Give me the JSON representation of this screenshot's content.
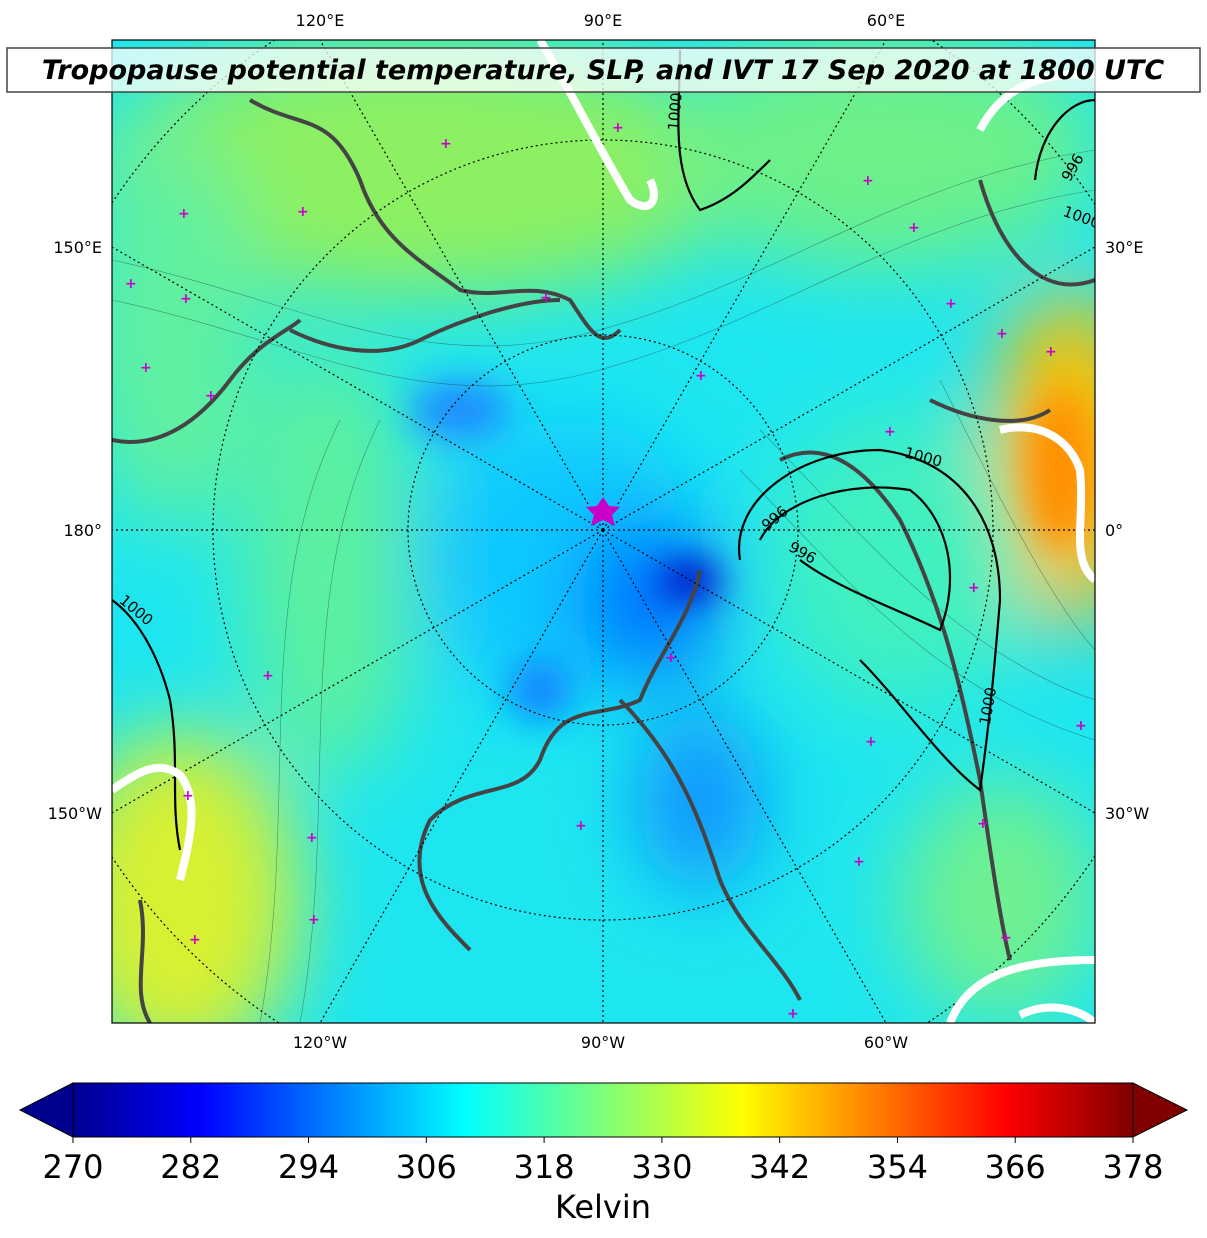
{
  "title": "Tropopause potential temperature, SLP, and IVT 17 Sep 2020 at 1800 UTC",
  "map": {
    "lon_labels_top": [
      "120°E",
      "90°E",
      "60°E"
    ],
    "lon_labels_bottom": [
      "120°W",
      "90°W",
      "60°W"
    ],
    "lon_labels_left": [
      "150°E",
      "180°",
      "150°W"
    ],
    "lon_labels_right": [
      "30°E",
      "0°",
      "30°W"
    ],
    "contour_labels": [
      "1000",
      "1000",
      "996",
      "996",
      "1000",
      "1000",
      "996",
      "1000"
    ]
  },
  "colorbar": {
    "range": [
      270,
      378
    ],
    "ticks": [
      270,
      282,
      294,
      306,
      318,
      330,
      342,
      354,
      366,
      378
    ],
    "label": "Kelvin"
  }
}
